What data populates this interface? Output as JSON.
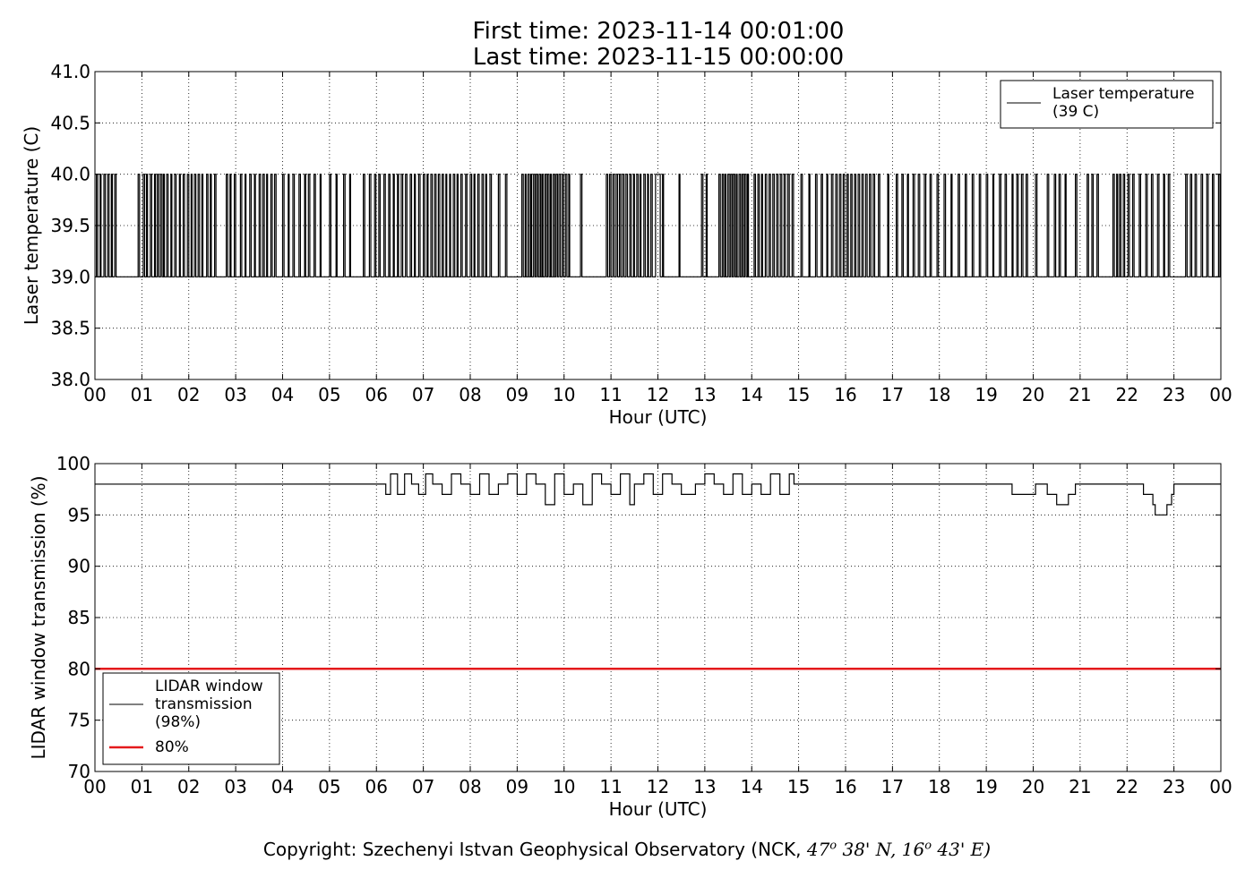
{
  "header": {
    "first_time": "First time: 2023-11-14 00:01:00",
    "last_time": "Last time: 2023-11-15 00:00:00"
  },
  "colors": {
    "series": "#000000",
    "threshold": "#e41a1c"
  },
  "chart_data": [
    {
      "type": "line",
      "xlabel": "Hour (UTC)",
      "ylabel": "Laser temperature (C)",
      "xlim": [
        0,
        24
      ],
      "ylim": [
        38.0,
        41.0
      ],
      "xtick_labels": [
        "00",
        "01",
        "02",
        "03",
        "04",
        "05",
        "06",
        "07",
        "08",
        "09",
        "10",
        "11",
        "12",
        "13",
        "14",
        "15",
        "16",
        "17",
        "18",
        "19",
        "20",
        "21",
        "22",
        "23",
        "00"
      ],
      "ytick_labels": [
        "38.0",
        "38.5",
        "39.0",
        "39.5",
        "40.0",
        "40.5",
        "41.0"
      ],
      "grid": true,
      "legend_position": "top-right",
      "series": [
        {
          "name": "Laser temperature\n(39 C)",
          "legend_lines": [
            "Laser temperature",
            "(39 C)"
          ],
          "color": "#000000",
          "step_levels": [
            39.0,
            40.0
          ],
          "high_intervals": [
            [
              0.03,
              0.06
            ],
            [
              0.11,
              0.13
            ],
            [
              0.19,
              0.22
            ],
            [
              0.27,
              0.3
            ],
            [
              0.35,
              0.37
            ],
            [
              0.42,
              0.45
            ],
            [
              0.92,
              0.95
            ],
            [
              1.03,
              1.06
            ],
            [
              1.1,
              1.12
            ],
            [
              1.18,
              1.21
            ],
            [
              1.27,
              1.29
            ],
            [
              1.33,
              1.36
            ],
            [
              1.4,
              1.43
            ],
            [
              1.46,
              1.48
            ],
            [
              1.53,
              1.56
            ],
            [
              1.62,
              1.64
            ],
            [
              1.7,
              1.73
            ],
            [
              1.8,
              1.82
            ],
            [
              1.88,
              1.91
            ],
            [
              1.97,
              2.0
            ],
            [
              2.05,
              2.07
            ],
            [
              2.12,
              2.15
            ],
            [
              2.2,
              2.23
            ],
            [
              2.28,
              2.3
            ],
            [
              2.38,
              2.41
            ],
            [
              2.46,
              2.48
            ],
            [
              2.55,
              2.58
            ],
            [
              2.8,
              2.83
            ],
            [
              2.88,
              2.9
            ],
            [
              2.97,
              3.0
            ],
            [
              3.1,
              3.13
            ],
            [
              3.2,
              3.22
            ],
            [
              3.3,
              3.33
            ],
            [
              3.4,
              3.42
            ],
            [
              3.5,
              3.53
            ],
            [
              3.58,
              3.61
            ],
            [
              3.66,
              3.68
            ],
            [
              3.75,
              3.78
            ],
            [
              3.83,
              3.86
            ],
            [
              4.0,
              4.03
            ],
            [
              4.12,
              4.14
            ],
            [
              4.22,
              4.25
            ],
            [
              4.35,
              4.38
            ],
            [
              4.47,
              4.49
            ],
            [
              4.55,
              4.58
            ],
            [
              4.67,
              4.7
            ],
            [
              4.8,
              4.82
            ],
            [
              5.0,
              5.03
            ],
            [
              5.14,
              5.16
            ],
            [
              5.3,
              5.33
            ],
            [
              5.43,
              5.45
            ],
            [
              5.72,
              5.75
            ],
            [
              5.85,
              5.88
            ],
            [
              5.96,
              5.99
            ],
            [
              6.05,
              6.08
            ],
            [
              6.16,
              6.19
            ],
            [
              6.26,
              6.29
            ],
            [
              6.36,
              6.38
            ],
            [
              6.45,
              6.47
            ],
            [
              6.53,
              6.56
            ],
            [
              6.62,
              6.65
            ],
            [
              6.72,
              6.75
            ],
            [
              6.81,
              6.83
            ],
            [
              6.9,
              6.93
            ],
            [
              7.0,
              7.03
            ],
            [
              7.08,
              7.1
            ],
            [
              7.16,
              7.19
            ],
            [
              7.24,
              7.27
            ],
            [
              7.32,
              7.35
            ],
            [
              7.4,
              7.43
            ],
            [
              7.48,
              7.5
            ],
            [
              7.56,
              7.58
            ],
            [
              7.64,
              7.67
            ],
            [
              7.72,
              7.74
            ],
            [
              7.8,
              7.83
            ],
            [
              7.9,
              7.93
            ],
            [
              8.0,
              8.03
            ],
            [
              8.08,
              8.1
            ],
            [
              8.16,
              8.19
            ],
            [
              8.25,
              8.28
            ],
            [
              8.33,
              8.35
            ],
            [
              8.42,
              8.45
            ],
            [
              8.6,
              8.63
            ],
            [
              8.75,
              8.78
            ],
            [
              9.1,
              9.13
            ],
            [
              9.17,
              9.19
            ],
            [
              9.23,
              9.26
            ],
            [
              9.29,
              9.31
            ],
            [
              9.35,
              9.38
            ],
            [
              9.41,
              9.44
            ],
            [
              9.47,
              9.5
            ],
            [
              9.53,
              9.55
            ],
            [
              9.59,
              9.62
            ],
            [
              9.65,
              9.68
            ],
            [
              9.71,
              9.73
            ],
            [
              9.77,
              9.8
            ],
            [
              9.83,
              9.86
            ],
            [
              9.89,
              9.92
            ],
            [
              9.96,
              9.99
            ],
            [
              10.03,
              10.06
            ],
            [
              10.1,
              10.12
            ],
            [
              10.35,
              10.38
            ],
            [
              10.9,
              10.93
            ],
            [
              10.97,
              11.0
            ],
            [
              11.04,
              11.07
            ],
            [
              11.11,
              11.14
            ],
            [
              11.18,
              11.21
            ],
            [
              11.25,
              11.28
            ],
            [
              11.32,
              11.35
            ],
            [
              11.4,
              11.43
            ],
            [
              11.48,
              11.5
            ],
            [
              11.55,
              11.58
            ],
            [
              11.62,
              11.64
            ],
            [
              11.7,
              11.73
            ],
            [
              11.78,
              11.8
            ],
            [
              11.85,
              11.88
            ],
            [
              11.95,
              12.05
            ],
            [
              12.1,
              12.12
            ],
            [
              12.45,
              12.47
            ],
            [
              12.93,
              12.96
            ],
            [
              13.03,
              13.05
            ],
            [
              13.3,
              13.33
            ],
            [
              13.37,
              13.4
            ],
            [
              13.43,
              13.45
            ],
            [
              13.49,
              13.52
            ],
            [
              13.55,
              13.58
            ],
            [
              13.61,
              13.64
            ],
            [
              13.67,
              13.69
            ],
            [
              13.73,
              13.76
            ],
            [
              13.79,
              13.82
            ],
            [
              13.85,
              13.88
            ],
            [
              13.91,
              13.93
            ],
            [
              14.05,
              14.08
            ],
            [
              14.13,
              14.16
            ],
            [
              14.21,
              14.23
            ],
            [
              14.29,
              14.32
            ],
            [
              14.37,
              14.4
            ],
            [
              14.45,
              14.48
            ],
            [
              14.53,
              14.56
            ],
            [
              14.61,
              14.64
            ],
            [
              14.69,
              14.72
            ],
            [
              14.77,
              14.8
            ],
            [
              14.86,
              14.89
            ],
            [
              15.05,
              15.08
            ],
            [
              15.22,
              15.24
            ],
            [
              15.36,
              15.39
            ],
            [
              15.48,
              15.51
            ],
            [
              15.6,
              15.62
            ],
            [
              15.7,
              15.73
            ],
            [
              15.79,
              15.82
            ],
            [
              15.87,
              15.9
            ],
            [
              15.95,
              15.98
            ],
            [
              16.03,
              16.06
            ],
            [
              16.11,
              16.14
            ],
            [
              16.19,
              16.22
            ],
            [
              16.27,
              16.3
            ],
            [
              16.35,
              16.38
            ],
            [
              16.43,
              16.46
            ],
            [
              16.51,
              16.54
            ],
            [
              16.59,
              16.62
            ],
            [
              16.7,
              16.73
            ],
            [
              16.9,
              16.92
            ],
            [
              17.08,
              17.11
            ],
            [
              17.2,
              17.23
            ],
            [
              17.32,
              17.34
            ],
            [
              17.44,
              17.47
            ],
            [
              17.55,
              17.58
            ],
            [
              17.68,
              17.71
            ],
            [
              17.8,
              17.83
            ],
            [
              17.95,
              17.98
            ],
            [
              18.1,
              18.13
            ],
            [
              18.25,
              18.27
            ],
            [
              18.4,
              18.43
            ],
            [
              18.55,
              18.58
            ],
            [
              18.7,
              18.73
            ],
            [
              18.85,
              18.88
            ],
            [
              19.0,
              19.03
            ],
            [
              19.14,
              19.16
            ],
            [
              19.28,
              19.31
            ],
            [
              19.4,
              19.43
            ],
            [
              19.55,
              19.57
            ],
            [
              19.65,
              19.68
            ],
            [
              19.75,
              19.78
            ],
            [
              19.85,
              19.88
            ],
            [
              20.05,
              20.08
            ],
            [
              20.3,
              20.33
            ],
            [
              20.45,
              20.48
            ],
            [
              20.55,
              20.58
            ],
            [
              20.68,
              20.7
            ],
            [
              20.9,
              20.93
            ],
            [
              21.15,
              21.18
            ],
            [
              21.25,
              21.28
            ],
            [
              21.36,
              21.39
            ],
            [
              21.7,
              21.73
            ],
            [
              21.78,
              21.8
            ],
            [
              21.84,
              21.87
            ],
            [
              21.92,
              21.95
            ],
            [
              22.02,
              22.05
            ],
            [
              22.12,
              22.15
            ],
            [
              22.26,
              22.29
            ],
            [
              22.4,
              22.43
            ],
            [
              22.52,
              22.55
            ],
            [
              22.65,
              22.68
            ],
            [
              22.78,
              22.8
            ],
            [
              22.88,
              22.91
            ],
            [
              23.25,
              23.28
            ],
            [
              23.35,
              23.38
            ],
            [
              23.45,
              23.48
            ],
            [
              23.58,
              23.61
            ],
            [
              23.7,
              23.73
            ],
            [
              23.82,
              23.85
            ],
            [
              23.95,
              23.98
            ]
          ]
        }
      ]
    },
    {
      "type": "line",
      "xlabel": "Hour (UTC)",
      "ylabel": "LIDAR window transmission (%)",
      "xlim": [
        0,
        24
      ],
      "ylim": [
        70,
        100
      ],
      "xtick_labels": [
        "00",
        "01",
        "02",
        "03",
        "04",
        "05",
        "06",
        "07",
        "08",
        "09",
        "10",
        "11",
        "12",
        "13",
        "14",
        "15",
        "16",
        "17",
        "18",
        "19",
        "20",
        "21",
        "22",
        "23",
        "00"
      ],
      "ytick_labels": [
        "70",
        "75",
        "80",
        "85",
        "90",
        "95",
        "100"
      ],
      "grid": true,
      "legend_position": "lower-left",
      "series": [
        {
          "name": "LIDAR window\ntransmission\n(98%)",
          "legend_lines": [
            "LIDAR window",
            "transmission",
            "(98%)"
          ],
          "color": "#000000",
          "baseline": 98,
          "x": [
            0,
            6.1,
            6.2,
            6.3,
            6.45,
            6.6,
            6.75,
            6.9,
            7.05,
            7.2,
            7.4,
            7.6,
            7.8,
            8.0,
            8.2,
            8.4,
            8.6,
            8.8,
            9.0,
            9.2,
            9.4,
            9.6,
            9.8,
            10.0,
            10.2,
            10.4,
            10.6,
            10.8,
            11.0,
            11.2,
            11.4,
            11.5,
            11.7,
            11.9,
            12.1,
            12.3,
            12.5,
            12.8,
            13.0,
            13.2,
            13.4,
            13.6,
            13.8,
            14.0,
            14.2,
            14.4,
            14.6,
            14.8,
            14.9,
            19.5,
            19.55,
            20.0,
            20.05,
            20.25,
            20.3,
            20.45,
            20.5,
            20.7,
            20.75,
            20.85,
            20.9,
            22.3,
            22.35,
            22.5,
            22.55,
            22.6,
            22.65,
            22.8,
            22.85,
            22.95,
            23.0,
            24
          ],
          "y": [
            98,
            98,
            97,
            99,
            97,
            99,
            98,
            97,
            99,
            98,
            97,
            99,
            98,
            97,
            99,
            97,
            98,
            99,
            97,
            99,
            98,
            96,
            99,
            97,
            98,
            96,
            99,
            98,
            97,
            99,
            96,
            98,
            99,
            97,
            99,
            98,
            97,
            98,
            99,
            98,
            97,
            99,
            97,
            98,
            97,
            99,
            97,
            99,
            98,
            98,
            97,
            97,
            98,
            98,
            97,
            97,
            96,
            96,
            97,
            97,
            98,
            98,
            97,
            97,
            96,
            95,
            95,
            95,
            96,
            97,
            98,
            98
          ]
        },
        {
          "name": "80%",
          "legend_lines": [
            "80%"
          ],
          "color": "#e41a1c",
          "x": [
            0,
            24
          ],
          "y": [
            80,
            80
          ]
        }
      ]
    }
  ],
  "footer": {
    "copyright_prefix": "Copyright: Szechenyi Istvan Geophysical Observatory (NCK, ",
    "lat_deg": "47",
    "lat_min": "38' N, ",
    "lon_deg": "16",
    "lon_min": "43' E)",
    "degree_mark": "o"
  }
}
